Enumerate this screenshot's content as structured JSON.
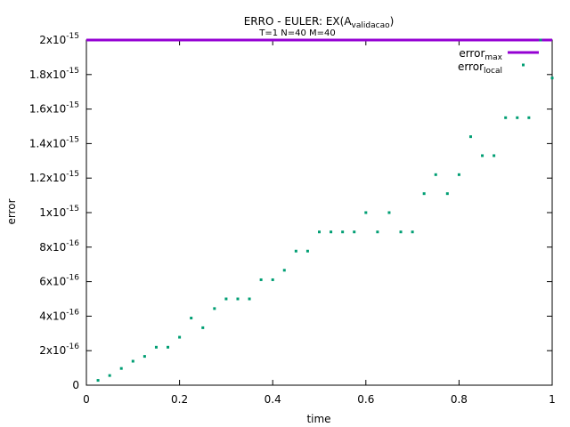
{
  "chart_data": {
    "type": "scatter",
    "title": "ERRO - EULER: EX(A",
    "title_subscript": "validacao",
    "title_suffix": ")",
    "subtitle": "T=1 N=40 M=40",
    "xlabel": "time",
    "ylabel": "error",
    "xlim": [
      0,
      1
    ],
    "ylim": [
      0,
      2e-15
    ],
    "x_ticks": [
      {
        "value": 0,
        "label": "0"
      },
      {
        "value": 0.2,
        "label": "0.2"
      },
      {
        "value": 0.4,
        "label": "0.4"
      },
      {
        "value": 0.6,
        "label": "0.6"
      },
      {
        "value": 0.8,
        "label": "0.8"
      },
      {
        "value": 1,
        "label": "1"
      }
    ],
    "y_ticks": [
      {
        "value": 0,
        "mant": "0",
        "exp": ""
      },
      {
        "value": 2e-16,
        "mant": "2x10",
        "exp": "-16"
      },
      {
        "value": 4e-16,
        "mant": "4x10",
        "exp": "-16"
      },
      {
        "value": 6e-16,
        "mant": "6x10",
        "exp": "-16"
      },
      {
        "value": 8e-16,
        "mant": "8x10",
        "exp": "-16"
      },
      {
        "value": 1e-15,
        "mant": "1x10",
        "exp": "-15"
      },
      {
        "value": 1.2e-15,
        "mant": "1.2x10",
        "exp": "-15"
      },
      {
        "value": 1.4e-15,
        "mant": "1.4x10",
        "exp": "-15"
      },
      {
        "value": 1.6e-15,
        "mant": "1.6x10",
        "exp": "-15"
      },
      {
        "value": 1.8e-15,
        "mant": "1.8x10",
        "exp": "-15"
      },
      {
        "value": 2e-15,
        "mant": "2x10",
        "exp": "-15"
      }
    ],
    "legend_position": "top-right",
    "series": [
      {
        "name": "error",
        "name_subscript": "max",
        "style": "line",
        "color": "#9400d3",
        "x": [
          0,
          1
        ],
        "y": [
          2e-15,
          2e-15
        ]
      },
      {
        "name": "error",
        "name_subscript": "local",
        "style": "points",
        "color": "#009e73",
        "x": [
          0.025,
          0.05,
          0.075,
          0.1,
          0.125,
          0.15,
          0.175,
          0.2,
          0.225,
          0.25,
          0.275,
          0.3,
          0.325,
          0.35,
          0.375,
          0.4,
          0.425,
          0.45,
          0.475,
          0.5,
          0.525,
          0.55,
          0.575,
          0.6,
          0.625,
          0.65,
          0.675,
          0.7,
          0.725,
          0.75,
          0.775,
          0.8,
          0.825,
          0.85,
          0.875,
          0.9,
          0.925,
          0.95,
          0.975,
          1.0
        ],
        "y": [
          2.8e-17,
          5.6e-17,
          9.7e-17,
          1.39e-16,
          1.67e-16,
          2.2e-16,
          2.2e-16,
          2.78e-16,
          3.89e-16,
          3.33e-16,
          4.44e-16,
          5e-16,
          5e-16,
          5e-16,
          6.11e-16,
          6.11e-16,
          6.66e-16,
          7.77e-16,
          7.77e-16,
          8.88e-16,
          8.88e-16,
          8.88e-16,
          8.88e-16,
          1e-15,
          8.88e-16,
          1e-15,
          8.88e-16,
          8.88e-16,
          1.11e-15,
          1.22e-15,
          1.11e-15,
          1.22e-15,
          1.44e-15,
          1.33e-15,
          1.33e-15,
          1.55e-15,
          1.55e-15,
          1.55e-15,
          2e-15,
          1.78e-15
        ]
      }
    ]
  }
}
